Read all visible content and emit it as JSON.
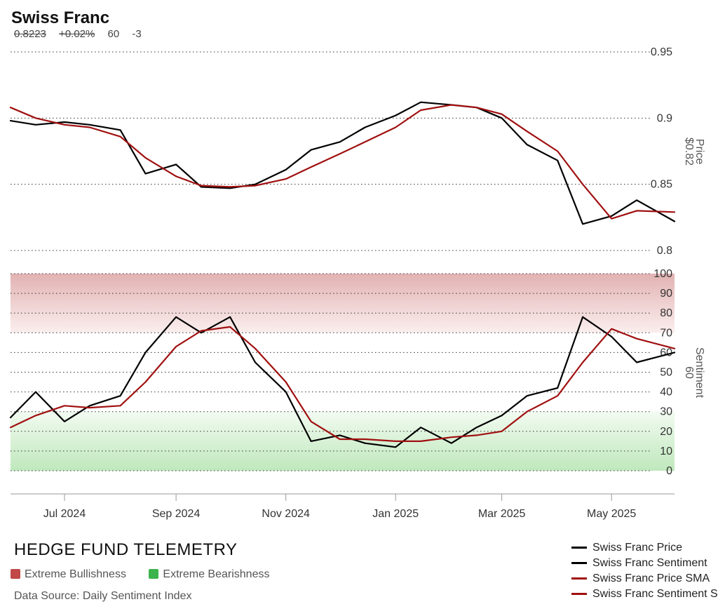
{
  "header": {
    "title": "Swiss Franc",
    "quote": {
      "last": "0.8223",
      "change": "+0.02%",
      "sentiment": "60",
      "sentiment_change": "-3"
    }
  },
  "footer": {
    "brand": "HEDGE FUND TELEMETRY",
    "zones": [
      {
        "label": "Extreme Bullishness",
        "color": "#c04848"
      },
      {
        "label": "Extreme Bearishness",
        "color": "#3cb44b"
      }
    ],
    "source": "Data Source: Daily Sentiment Index"
  },
  "legend": [
    {
      "label": "Swiss Franc Price",
      "color": "#000000"
    },
    {
      "label": "Swiss Franc Sentiment",
      "color": "#000000"
    },
    {
      "label": "Swiss Franc Price SMA",
      "color": "#a01010"
    },
    {
      "label": "Swiss Franc Sentiment SMA",
      "color": "#a01010"
    }
  ],
  "chart_data": [
    {
      "type": "line",
      "panel": "price",
      "ylabel": "Price",
      "last_value_label": "$0.82",
      "ylim": [
        0.8,
        0.95
      ],
      "yticks": [
        "0.95",
        "0.9",
        "0.85",
        "0.8"
      ],
      "grid": true,
      "x": [
        "2024-06-01",
        "2024-06-15",
        "2024-07-01",
        "2024-07-15",
        "2024-08-01",
        "2024-08-15",
        "2024-09-01",
        "2024-09-15",
        "2024-10-01",
        "2024-10-15",
        "2024-11-01",
        "2024-11-15",
        "2024-12-01",
        "2024-12-15",
        "2025-01-01",
        "2025-01-15",
        "2025-02-01",
        "2025-02-15",
        "2025-03-01",
        "2025-03-15",
        "2025-04-01",
        "2025-04-15",
        "2025-05-01",
        "2025-05-15",
        "2025-06-05"
      ],
      "series": [
        {
          "name": "Swiss Franc Price",
          "color": "#000000",
          "values": [
            0.898,
            0.895,
            0.897,
            0.895,
            0.891,
            0.858,
            0.865,
            0.848,
            0.847,
            0.85,
            0.861,
            0.876,
            0.882,
            0.893,
            0.902,
            0.912,
            0.91,
            0.908,
            0.9,
            0.88,
            0.868,
            0.82,
            0.826,
            0.838,
            0.822
          ]
        },
        {
          "name": "Swiss Franc Price SMA",
          "color": "#a01010",
          "values": [
            0.908,
            0.9,
            0.895,
            0.893,
            0.886,
            0.87,
            0.856,
            0.849,
            0.848,
            0.849,
            0.854,
            0.863,
            0.873,
            0.882,
            0.893,
            0.906,
            0.91,
            0.908,
            0.903,
            0.89,
            0.875,
            0.85,
            0.824,
            0.83,
            0.829
          ]
        }
      ]
    },
    {
      "type": "line",
      "panel": "sentiment",
      "ylabel": "Sentiment",
      "last_value_label": "60",
      "ylim": [
        0,
        100
      ],
      "yticks": [
        "0",
        "10",
        "20",
        "30",
        "40",
        "50",
        "60",
        "70",
        "80",
        "90",
        "100"
      ],
      "grid": true,
      "bands": [
        {
          "range": [
            70,
            100
          ],
          "zone": "Extreme Bullishness"
        },
        {
          "range": [
            0,
            30
          ],
          "zone": "Extreme Bearishness"
        }
      ],
      "xticks": [
        {
          "label": "Jul 2024",
          "date": "2024-07-01"
        },
        {
          "label": "Sep 2024",
          "date": "2024-09-01"
        },
        {
          "label": "Nov 2024",
          "date": "2024-11-01"
        },
        {
          "label": "Jan 2025",
          "date": "2025-01-01"
        },
        {
          "label": "Mar 2025",
          "date": "2025-03-01"
        },
        {
          "label": "May 2025",
          "date": "2025-05-01"
        }
      ],
      "x": [
        "2024-06-01",
        "2024-06-15",
        "2024-07-01",
        "2024-07-15",
        "2024-08-01",
        "2024-08-15",
        "2024-09-01",
        "2024-09-15",
        "2024-10-01",
        "2024-10-15",
        "2024-11-01",
        "2024-11-15",
        "2024-12-01",
        "2024-12-15",
        "2025-01-01",
        "2025-01-15",
        "2025-02-01",
        "2025-02-15",
        "2025-03-01",
        "2025-03-15",
        "2025-04-01",
        "2025-04-15",
        "2025-05-01",
        "2025-05-15",
        "2025-06-05"
      ],
      "series": [
        {
          "name": "Swiss Franc Sentiment",
          "color": "#000000",
          "values": [
            27,
            40,
            25,
            33,
            38,
            60,
            78,
            70,
            78,
            55,
            40,
            15,
            18,
            14,
            12,
            22,
            14,
            22,
            28,
            38,
            42,
            78,
            68,
            55,
            60
          ]
        },
        {
          "name": "Swiss Franc Sentiment SMA",
          "color": "#a01010",
          "values": [
            22,
            28,
            33,
            32,
            33,
            45,
            63,
            71,
            73,
            62,
            45,
            25,
            16,
            16,
            15,
            15,
            17,
            18,
            20,
            30,
            38,
            55,
            72,
            67,
            62
          ]
        }
      ]
    }
  ]
}
